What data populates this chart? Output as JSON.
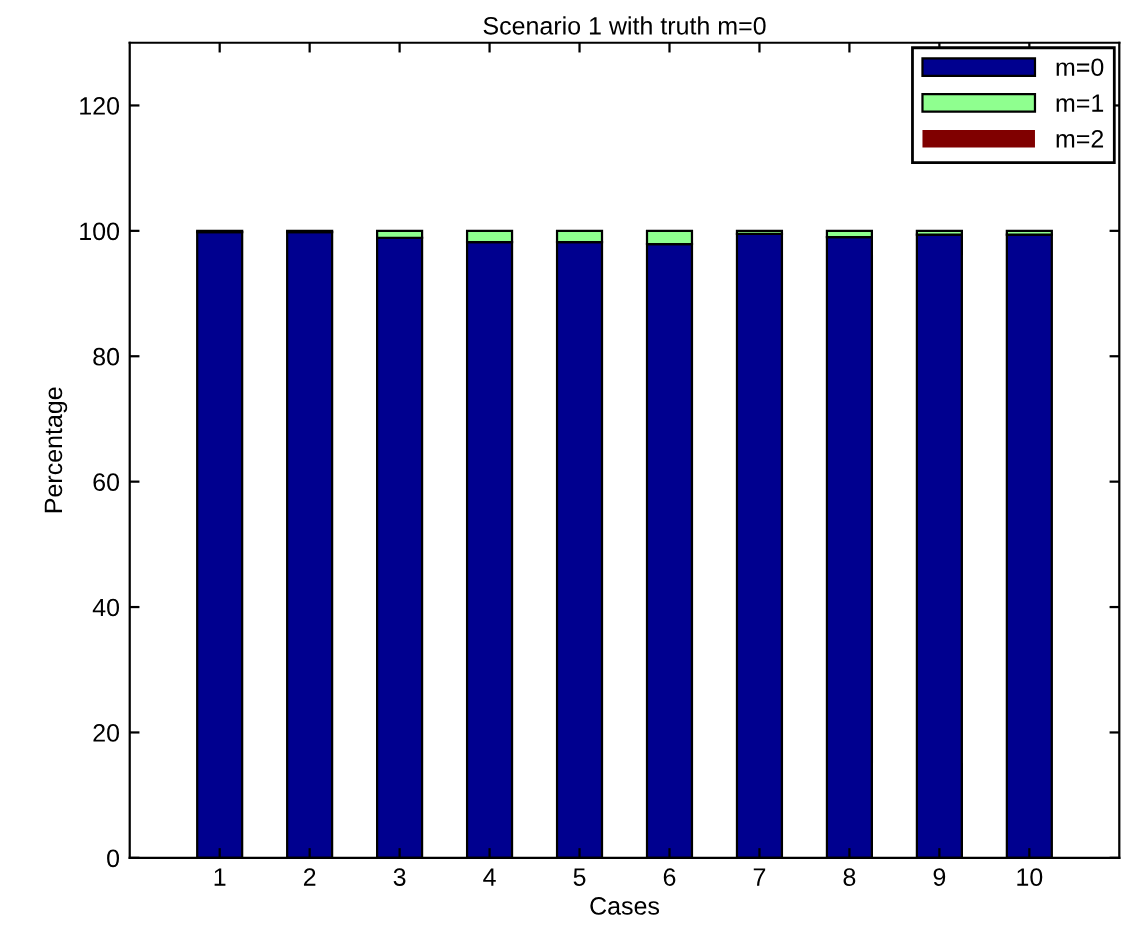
{
  "chart_data": {
    "type": "bar",
    "title": "Scenario 1 with truth m=0",
    "xlabel": "Cases",
    "ylabel": "Percentage",
    "stacked": true,
    "categories": [
      "1",
      "2",
      "3",
      "4",
      "5",
      "6",
      "7",
      "8",
      "9",
      "10"
    ],
    "series": [
      {
        "name": "m=0",
        "color": "#00008f",
        "values": [
          99.8,
          99.8,
          98.9,
          98.2,
          98.2,
          97.9,
          99.5,
          99.0,
          99.4,
          99.4
        ]
      },
      {
        "name": "m=1",
        "color": "#8fff8f",
        "values": [
          0.2,
          0.2,
          1.1,
          1.8,
          1.8,
          2.1,
          0.5,
          1.0,
          0.6,
          0.6
        ]
      },
      {
        "name": "m=2",
        "color": "#800000",
        "values": [
          0,
          0,
          0,
          0,
          0,
          0,
          0,
          0,
          0,
          0
        ]
      }
    ],
    "ylim": [
      0,
      130
    ],
    "yticks": [
      0,
      20,
      40,
      60,
      80,
      100,
      120
    ],
    "grid": false,
    "legend": "top right"
  }
}
